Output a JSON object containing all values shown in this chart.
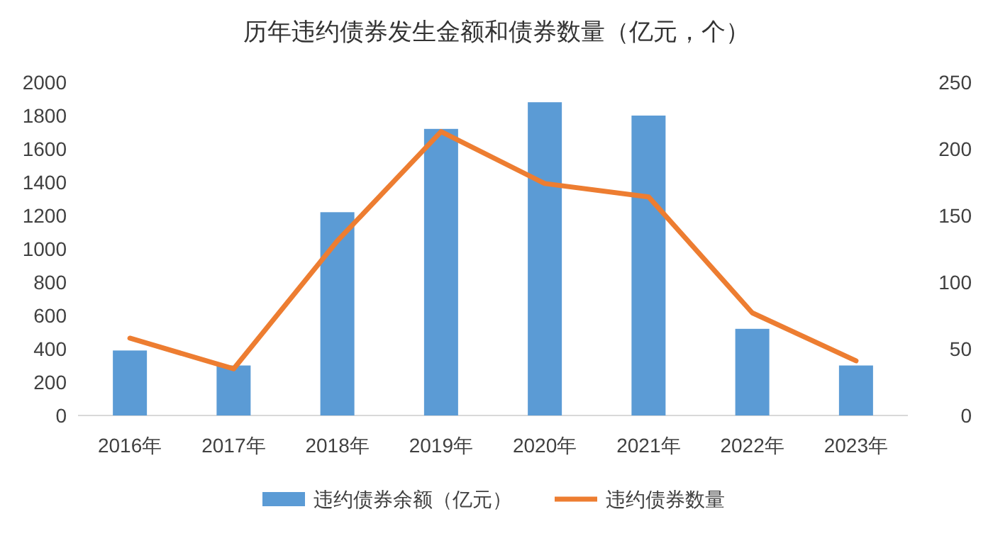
{
  "chart_data": {
    "type": "bar",
    "title": "历年违约债券发生金额和债券数量（亿元，个）",
    "categories": [
      "2016年",
      "2017年",
      "2018年",
      "2019年",
      "2020年",
      "2021年",
      "2022年",
      "2023年"
    ],
    "series": [
      {
        "name": "违约债券余额（亿元）",
        "color": "#5b9bd5",
        "values": [
          390,
          300,
          1220,
          1720,
          1880,
          1800,
          520,
          300
        ]
      },
      {
        "name": "违约债券数量",
        "type": "line",
        "axis": "y2",
        "color": "#ed7d31",
        "values": [
          58,
          35,
          131,
          213,
          174,
          164,
          77,
          41
        ]
      }
    ],
    "ylim": [
      0,
      2000
    ],
    "yticks": [
      0,
      200,
      400,
      600,
      800,
      1000,
      1200,
      1400,
      1600,
      1800,
      2000
    ],
    "y2lim": [
      0,
      250
    ],
    "y2ticks": [
      0,
      50,
      100,
      150,
      200,
      250
    ],
    "legend": "bottom",
    "grid": false
  }
}
